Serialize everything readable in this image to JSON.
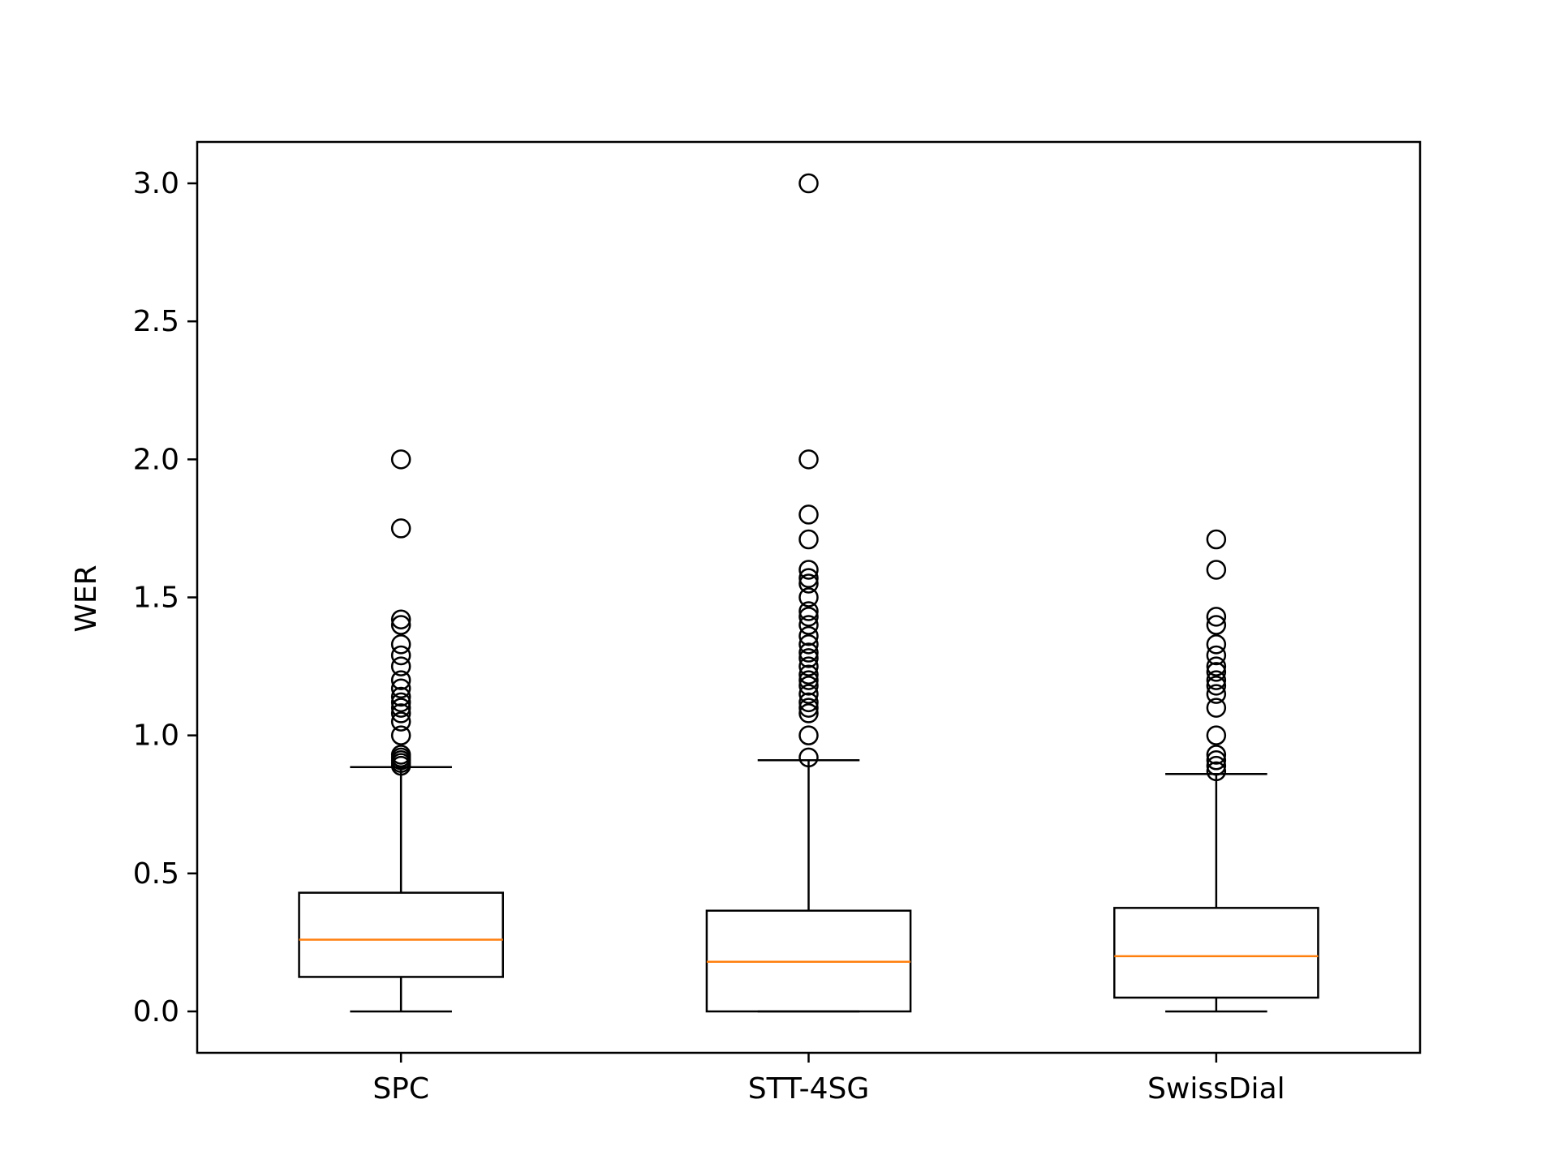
{
  "chart_data": {
    "type": "boxplot",
    "title": "",
    "xlabel": "",
    "ylabel": "WER",
    "ylim": [
      -0.15,
      3.15
    ],
    "yticks": [
      "0.0",
      "0.5",
      "1.0",
      "1.5",
      "2.0",
      "2.5",
      "3.0"
    ],
    "grid": false,
    "legend": "none",
    "colors": {
      "box": "#000000",
      "median": "#ff7f0e",
      "flier": "#000000",
      "background": "#ffffff"
    },
    "categories": [
      "SPC",
      "STT-4SG",
      "SwissDial"
    ],
    "series": [
      {
        "category": "SPC",
        "whisker_low": 0.0,
        "q1": 0.125,
        "median": 0.26,
        "q3": 0.43,
        "whisker_high": 0.885,
        "fliers": [
          0.89,
          0.9,
          0.91,
          0.92,
          0.93,
          1.0,
          1.05,
          1.08,
          1.1,
          1.12,
          1.14,
          1.17,
          1.2,
          1.25,
          1.29,
          1.33,
          1.4,
          1.42,
          1.75,
          2.0
        ]
      },
      {
        "category": "STT-4SG",
        "whisker_low": 0.0,
        "q1": 0.0,
        "median": 0.18,
        "q3": 0.365,
        "whisker_high": 0.91,
        "fliers": [
          0.92,
          1.0,
          1.08,
          1.1,
          1.12,
          1.15,
          1.18,
          1.2,
          1.22,
          1.25,
          1.28,
          1.3,
          1.33,
          1.36,
          1.4,
          1.43,
          1.45,
          1.5,
          1.55,
          1.57,
          1.6,
          1.71,
          1.8,
          2.0,
          3.0
        ]
      },
      {
        "category": "SwissDial",
        "whisker_low": 0.0,
        "q1": 0.05,
        "median": 0.2,
        "q3": 0.375,
        "whisker_high": 0.86,
        "fliers": [
          0.87,
          0.89,
          0.91,
          0.93,
          1.0,
          1.1,
          1.15,
          1.18,
          1.2,
          1.23,
          1.25,
          1.29,
          1.33,
          1.4,
          1.43,
          1.6,
          1.71
        ]
      }
    ]
  }
}
